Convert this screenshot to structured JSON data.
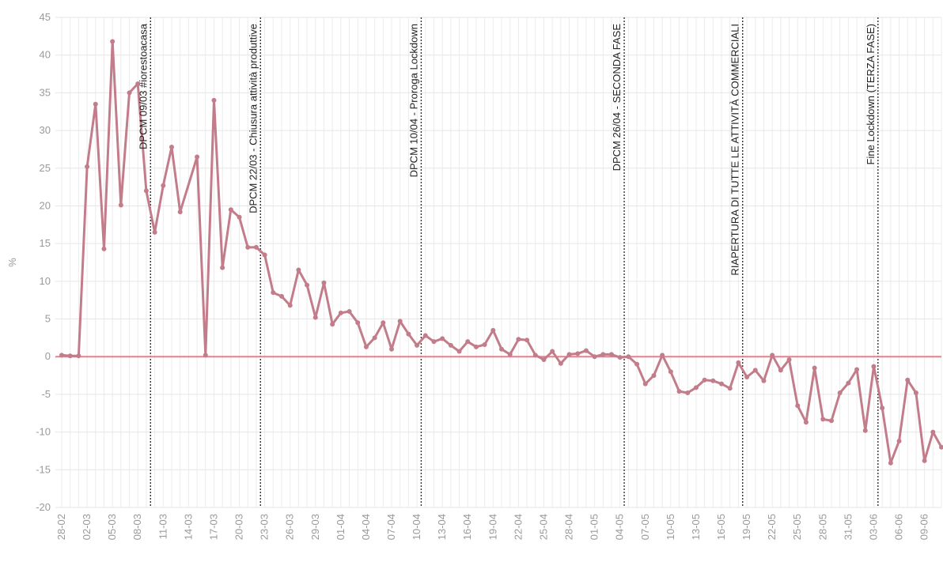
{
  "chart_data": {
    "type": "line",
    "ylabel": "%",
    "ylim": [
      -20,
      45
    ],
    "yticks": [
      45,
      40,
      35,
      30,
      25,
      20,
      15,
      10,
      5,
      0,
      -5,
      -10,
      -15,
      -20
    ],
    "grid": true,
    "line_color": "#c27c8a",
    "zero_line_color": "#e8808a",
    "x": [
      "28-02",
      "29-02",
      "01-03",
      "02-03",
      "03-03",
      "04-03",
      "05-03",
      "06-03",
      "07-03",
      "08-03",
      "09-03",
      "10-03",
      "11-03",
      "12-03",
      "13-03",
      "14-03",
      "15-03",
      "16-03",
      "17-03",
      "18-03",
      "19-03",
      "20-03",
      "21-03",
      "22-03",
      "23-03",
      "24-03",
      "25-03",
      "26-03",
      "27-03",
      "28-03",
      "29-03",
      "30-03",
      "31-03",
      "01-04",
      "02-04",
      "03-04",
      "04-04",
      "05-04",
      "06-04",
      "07-04",
      "08-04",
      "09-04",
      "10-04",
      "11-04",
      "12-04",
      "13-04",
      "14-04",
      "15-04",
      "16-04",
      "17-04",
      "18-04",
      "19-04",
      "20-04",
      "21-04",
      "22-04",
      "23-04",
      "24-04",
      "25-04",
      "26-04",
      "27-04",
      "28-04",
      "29-04",
      "30-04",
      "01-05",
      "02-05",
      "03-05",
      "04-05",
      "05-05",
      "06-05",
      "07-05",
      "08-05",
      "09-05",
      "10-05",
      "11-05",
      "12-05",
      "13-05",
      "14-05",
      "15-05",
      "16-05",
      "17-05",
      "18-05",
      "19-05",
      "20-05",
      "21-05",
      "22-05",
      "23-05",
      "24-05",
      "25-05",
      "26-05",
      "27-05",
      "28-05",
      "29-05",
      "30-05",
      "31-05",
      "01-06",
      "02-06",
      "03-06",
      "04-06",
      "05-06",
      "06-06",
      "07-06",
      "08-06",
      "09-06",
      "10-06",
      "11-06"
    ],
    "xtick_labels": [
      "28-02",
      "02-03",
      "05-03",
      "08-03",
      "11-03",
      "14-03",
      "17-03",
      "20-03",
      "23-03",
      "26-03",
      "29-03",
      "01-04",
      "04-04",
      "07-04",
      "10-04",
      "13-04",
      "16-04",
      "19-04",
      "22-04",
      "25-04",
      "28-04",
      "01-05",
      "04-05",
      "07-05",
      "10-05",
      "13-05",
      "16-05",
      "19-05",
      "22-05",
      "25-05",
      "28-05",
      "31-05",
      "03-06",
      "06-06",
      "09-06"
    ],
    "series": [
      {
        "values": [
          0.2,
          0.1,
          0.1,
          25.2,
          33.5,
          14.3,
          41.8,
          20.1,
          35.0,
          36.2,
          22.0,
          16.5,
          22.7,
          27.8,
          19.2,
          null,
          26.5,
          0.2,
          34.0,
          11.8,
          19.5,
          18.5,
          14.5,
          14.5,
          13.5,
          8.5,
          8.0,
          6.8,
          11.5,
          9.5,
          5.2,
          9.8,
          4.3,
          5.8,
          6.0,
          4.5,
          1.3,
          2.5,
          4.5,
          1.0,
          4.7,
          3.0,
          1.5,
          2.8,
          2.0,
          2.4,
          1.5,
          0.7,
          2.0,
          1.3,
          1.6,
          3.5,
          1.0,
          0.3,
          2.3,
          2.2,
          0.2,
          -0.4,
          0.7,
          -0.9,
          0.3,
          0.4,
          0.8,
          0.0,
          0.3,
          0.3,
          -0.1,
          0.0,
          -1.0,
          -3.6,
          -2.5,
          0.2,
          -2.0,
          -4.6,
          -4.8,
          -4.1,
          -3.1,
          -3.2,
          -3.6,
          -4.2,
          -0.8,
          -2.7,
          -1.8,
          -3.2,
          0.2,
          -1.8,
          -0.4,
          -6.5,
          -8.7,
          -1.5,
          -8.3,
          -8.5,
          -4.8,
          -3.5,
          -1.7,
          -9.8,
          -1.3,
          -6.8,
          -14.1,
          -11.2,
          -3.1,
          -4.8,
          -13.8,
          -10.0,
          -12.0
        ]
      }
    ],
    "annotations": [
      {
        "x": "10-03",
        "text": "DPCM 09/03 #iorestoacasa"
      },
      {
        "x": "23-03",
        "text": "DPCM 22/03 - Chiusura attività produttive"
      },
      {
        "x": "11-04",
        "text": "DPCM 10/04 - Proroga Lockdown"
      },
      {
        "x": "05-05",
        "text": "DPCM 26/04 - SECONDA FASE"
      },
      {
        "x": "19-05",
        "text": "RIAPERTURA DI TUTTE LE ATTIVITÀ COMMERCIALI"
      },
      {
        "x": "04-06",
        "text": "Fine Lockdown (TERZA FASE)"
      }
    ]
  }
}
